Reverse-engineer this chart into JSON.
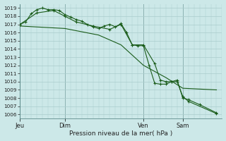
{
  "background_color": "#cce8e8",
  "grid_color": "#aacccc",
  "line_color": "#1a5c1a",
  "marker": "+",
  "xlabel_text": "Pression niveau de la mer( hPa )",
  "x_ticks_labels": [
    "Jeu",
    "Dim",
    "Ven",
    "Sam"
  ],
  "x_ticks_pos": [
    0,
    8,
    22,
    29
  ],
  "xlim": [
    0,
    36
  ],
  "ylim": [
    1005.5,
    1019.5
  ],
  "yticks": [
    1006,
    1007,
    1008,
    1009,
    1010,
    1011,
    1012,
    1013,
    1014,
    1015,
    1016,
    1017,
    1018,
    1019
  ],
  "vlines": [
    0,
    8,
    22,
    29
  ],
  "series1_x": [
    0,
    1,
    2,
    3,
    4,
    5,
    6,
    7,
    8,
    9,
    10,
    11,
    12,
    13,
    14,
    15,
    16,
    17,
    18,
    19,
    20,
    21,
    22,
    23,
    24,
    25,
    26,
    27,
    28,
    29,
    30,
    35
  ],
  "series1_y": [
    1017.0,
    1017.3,
    1018.3,
    1018.8,
    1019.0,
    1018.8,
    1018.8,
    1018.7,
    1018.2,
    1017.9,
    1017.6,
    1017.4,
    1017.0,
    1016.7,
    1016.5,
    1016.8,
    1017.0,
    1016.7,
    1017.1,
    1016.0,
    1014.5,
    1014.4,
    1014.4,
    1012.0,
    1009.8,
    1009.7,
    1009.7,
    1010.0,
    1010.0,
    1008.2,
    1007.6,
    1006.1
  ],
  "series2_x": [
    0,
    8,
    14,
    18,
    22,
    26,
    29,
    35
  ],
  "series2_y": [
    1016.8,
    1016.5,
    1015.7,
    1014.5,
    1012.0,
    1010.5,
    1009.2,
    1009.0
  ],
  "series3_x": [
    0,
    3,
    6,
    8,
    10,
    13,
    16,
    18,
    20,
    22,
    24,
    25,
    26,
    27,
    28,
    29,
    30,
    32,
    35
  ],
  "series3_y": [
    1017.0,
    1018.4,
    1018.7,
    1018.0,
    1017.3,
    1016.8,
    1016.4,
    1017.0,
    1014.5,
    1014.5,
    1012.2,
    1010.2,
    1010.0,
    1010.0,
    1010.2,
    1008.0,
    1007.8,
    1007.2,
    1006.2
  ]
}
